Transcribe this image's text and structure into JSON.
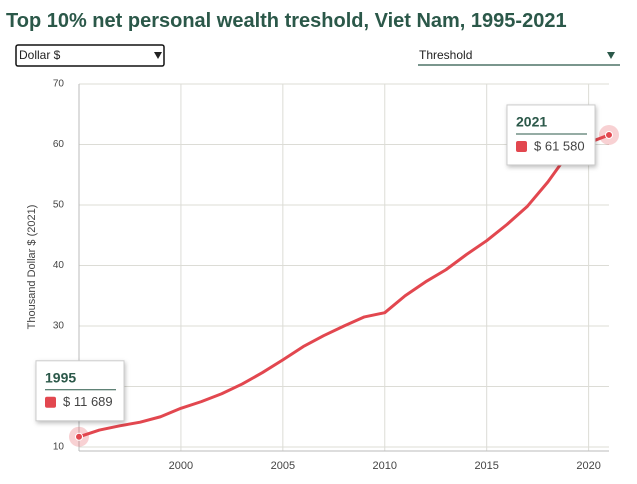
{
  "controls": {
    "unit": "Dollar $",
    "measure": "Threshold"
  },
  "chart_data": {
    "type": "line",
    "title": "Top 10% net personal wealth treshold, Viet Nam, 1995-2021",
    "y_label": "Thousand Dollar $ (2021)",
    "x": [
      1995,
      1996,
      1997,
      1998,
      1999,
      2000,
      2001,
      2002,
      2003,
      2004,
      2005,
      2006,
      2007,
      2008,
      2009,
      2010,
      2011,
      2012,
      2013,
      2014,
      2015,
      2016,
      2017,
      2018,
      2019,
      2020,
      2021
    ],
    "values": [
      11.689,
      12.8,
      13.5,
      14.1,
      15.0,
      16.4,
      17.5,
      18.8,
      20.4,
      22.3,
      24.4,
      26.6,
      28.4,
      30.0,
      31.5,
      32.2,
      35.0,
      37.3,
      39.3,
      41.8,
      44.1,
      46.8,
      49.8,
      53.8,
      58.5,
      60.3,
      61.58
    ],
    "value_labels": [
      "$ 11 689",
      null,
      null,
      null,
      null,
      null,
      null,
      null,
      null,
      null,
      null,
      null,
      null,
      null,
      null,
      null,
      null,
      null,
      null,
      null,
      null,
      null,
      null,
      null,
      null,
      null,
      "$ 61 580"
    ],
    "color": "#e2474f",
    "xlim": [
      1995,
      2021
    ],
    "xticks": [
      2000,
      2005,
      2010,
      2015,
      2020
    ],
    "ylim": [
      10,
      70
    ],
    "yticks": [
      10,
      20,
      30,
      40,
      50,
      60,
      70
    ],
    "grid": true
  }
}
